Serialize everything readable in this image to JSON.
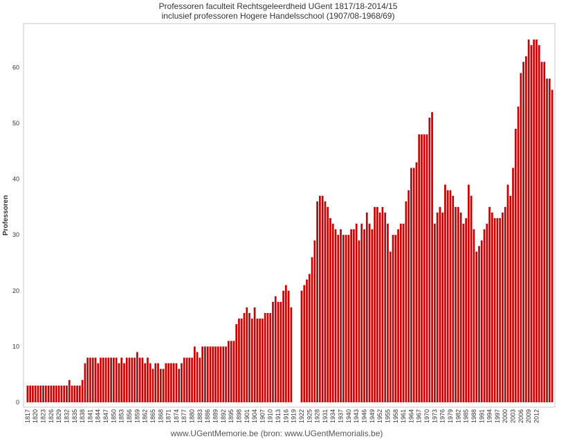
{
  "chart_data": {
    "type": "bar",
    "title_line1": "Professoren faculteit Rechtsgeleerdheid UGent 1817/18-2014/15",
    "title_line2": "inclusief professoren Hogere Handelsschool (1907/08-1968/69)",
    "xlabel": "",
    "ylabel": "Professoren",
    "footer": "www.UGentMemorie.be (bron: www.UGentMemorialis.be)",
    "ylim": [
      0,
      68
    ],
    "yticks": [
      0,
      10,
      20,
      30,
      40,
      50,
      60
    ],
    "grid": false,
    "bar_color": "#cc0000",
    "x_start": 1817,
    "x_end": 2014,
    "xtick_labels": [
      "1817",
      "1820",
      "1823",
      "1826",
      "1829",
      "1832",
      "1835",
      "1838",
      "1841",
      "1844",
      "1847",
      "1850",
      "1853",
      "1856",
      "1859",
      "1862",
      "1865",
      "1868",
      "1871",
      "1874",
      "1877",
      "1880",
      "1883",
      "1886",
      "1889",
      "1892",
      "1895",
      "1898",
      "1901",
      "1904",
      "1907",
      "1910",
      "1913",
      "1916",
      "1919",
      "1922",
      "1925",
      "1928",
      "1931",
      "1934",
      "1937",
      "1940",
      "1943",
      "1946",
      "1949",
      "1952",
      "1955",
      "1958",
      "1961",
      "1964",
      "1967",
      "1970",
      "1973",
      "1976",
      "1979",
      "1982",
      "1985",
      "1988",
      "1991",
      "1994",
      "1997",
      "2000",
      "2003",
      "2006",
      "2009",
      "2012"
    ],
    "values": [
      3,
      3,
      3,
      3,
      3,
      3,
      3,
      3,
      3,
      3,
      3,
      3,
      3,
      3,
      3,
      3,
      4,
      3,
      3,
      3,
      3,
      4,
      7,
      8,
      8,
      8,
      8,
      7,
      8,
      8,
      8,
      8,
      8,
      8,
      8,
      7,
      8,
      7,
      8,
      8,
      8,
      8,
      9,
      8,
      8,
      7,
      8,
      7,
      6,
      7,
      7,
      6,
      6,
      7,
      7,
      7,
      7,
      7,
      6,
      7,
      8,
      8,
      8,
      8,
      10,
      9,
      8,
      10,
      10,
      10,
      10,
      10,
      10,
      10,
      10,
      10,
      10,
      11,
      11,
      11,
      14,
      15,
      15,
      16,
      17,
      16,
      15,
      17,
      15,
      15,
      15,
      16,
      16,
      16,
      18,
      19,
      18,
      18,
      20,
      21,
      20,
      17,
      0,
      0,
      0,
      20,
      21,
      22,
      23,
      26,
      29,
      36,
      37,
      37,
      36,
      35,
      33,
      32,
      31,
      30,
      31,
      30,
      30,
      30,
      31,
      31,
      32,
      29,
      32,
      31,
      34,
      32,
      31,
      35,
      35,
      34,
      35,
      34,
      32,
      27,
      30,
      30,
      31,
      32,
      32,
      36,
      38,
      42,
      42,
      43,
      48,
      48,
      48,
      48,
      51,
      52,
      32,
      34,
      35,
      34,
      39,
      38,
      38,
      37,
      35,
      35,
      34,
      32,
      33,
      39,
      37,
      31,
      27,
      28,
      29,
      31,
      32,
      35,
      34,
      33,
      33,
      33,
      34,
      35,
      39,
      37,
      42,
      49,
      53,
      59,
      61,
      62,
      65,
      64,
      65,
      65,
      64,
      61,
      61,
      58,
      58,
      56
    ]
  }
}
